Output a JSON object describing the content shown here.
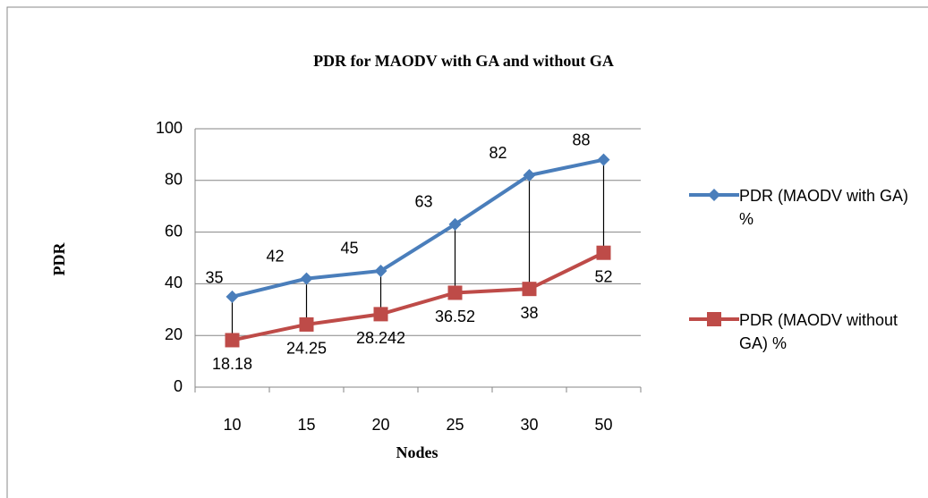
{
  "chart_data": {
    "type": "line",
    "title": "PDR for MAODV  with GA and without GA",
    "x_label": "Nodes",
    "y_label": "PDR",
    "categories": [
      "10",
      "15",
      "20",
      "25",
      "30",
      "50"
    ],
    "series": [
      {
        "name": "PDR (MAODV with GA) %",
        "color": "#4a7ebb",
        "marker": "diamond",
        "values": [
          35,
          42,
          45,
          63,
          82,
          88
        ]
      },
      {
        "name": "PDR (MAODV without GA) %",
        "color": "#be4b48",
        "marker": "square",
        "values": [
          18.18,
          24.25,
          28.242,
          36.52,
          38,
          52
        ]
      }
    ],
    "ylim": [
      0,
      100
    ],
    "yticks": [
      0,
      20,
      40,
      60,
      80,
      100
    ],
    "grid": true,
    "high_low_lines": true,
    "legend": "right"
  }
}
